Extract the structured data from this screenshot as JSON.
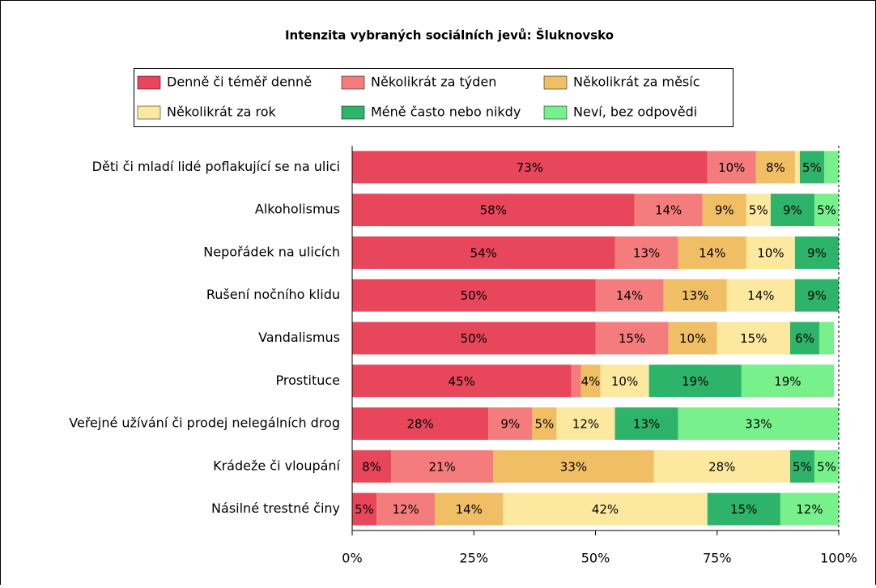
{
  "chart_data": {
    "type": "stacked-bar-horizontal",
    "title": "Intenzita vybraných sociálních jevů: Šluknovsko",
    "categories": [
      "Děti či mladí lidé poflakující se na ulici",
      "Alkoholismus",
      "Nepořádek na ulicích",
      "Rušení nočního klidu",
      "Vandalismus",
      "Prostituce",
      "Veřejné užívání či prodej nelegálních drog",
      "Krádeže či vloupání",
      "Násilné trestné činy"
    ],
    "series": [
      {
        "name": "Denně či téměř denně",
        "color": "#e8465a",
        "values": [
          73,
          58,
          54,
          50,
          50,
          45,
          28,
          8,
          5
        ],
        "value_labels": [
          "73%",
          "58%",
          "54%",
          "50%",
          "50%",
          "45%",
          "28%",
          "8%",
          "5%"
        ]
      },
      {
        "name": "Několikrát za týden",
        "color": "#f47c7c",
        "values": [
          10,
          14,
          13,
          14,
          15,
          2,
          9,
          21,
          12
        ],
        "value_labels": [
          "10%",
          "14%",
          "13%",
          "14%",
          "15%",
          null,
          "9%",
          "21%",
          "12%"
        ]
      },
      {
        "name": "Několikrát za měsíc",
        "color": "#f0be64",
        "values": [
          8,
          9,
          14,
          13,
          10,
          4,
          5,
          33,
          14
        ],
        "value_labels": [
          "8%",
          "9%",
          "14%",
          "13%",
          "10%",
          "4%",
          "5%",
          "33%",
          "14%"
        ]
      },
      {
        "name": "Několikrát za rok",
        "color": "#fde8a0",
        "values": [
          1,
          5,
          10,
          14,
          15,
          10,
          12,
          28,
          42
        ],
        "value_labels": [
          null,
          "5%",
          "10%",
          "14%",
          "15%",
          "10%",
          "12%",
          "28%",
          "42%"
        ]
      },
      {
        "name": "Méně často nebo nikdy",
        "color": "#2db46a",
        "values": [
          5,
          9,
          9,
          9,
          6,
          19,
          13,
          5,
          15
        ],
        "value_labels": [
          "5%",
          "9%",
          "9%",
          "9%",
          "6%",
          "19%",
          "13%",
          "5%",
          "15%"
        ]
      },
      {
        "name": "Neví, bez odpovědi",
        "color": "#78f08c",
        "values": [
          3,
          5,
          0,
          0,
          3,
          19,
          33,
          5,
          12
        ],
        "value_labels": [
          null,
          "5%",
          null,
          null,
          null,
          "19%",
          "33%",
          "5%",
          "12%"
        ]
      }
    ],
    "xlim": [
      0,
      100
    ],
    "xticks": [
      {
        "value": 0,
        "label": "0%"
      },
      {
        "value": 25,
        "label": "25%"
      },
      {
        "value": 50,
        "label": "50%"
      },
      {
        "value": 75,
        "label": "75%"
      },
      {
        "value": 100,
        "label": "100%"
      }
    ]
  }
}
